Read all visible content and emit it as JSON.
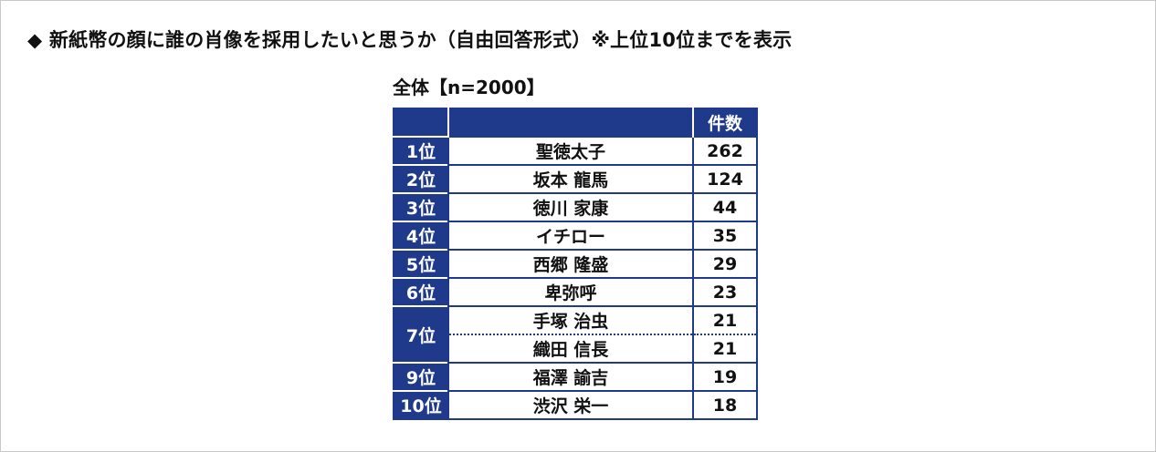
{
  "heading": "◆ 新紙幣の顔に誰の肖像を採用したいと思うか（自由回答形式）※上位10位までを表示",
  "chart_data": {
    "type": "table",
    "subtitle": "全体【n=2000】",
    "columns": [
      "",
      "",
      "件数"
    ],
    "rows": [
      {
        "rank": "1位",
        "name": "聖徳太子",
        "count": "262"
      },
      {
        "rank": "2位",
        "name": "坂本 龍馬",
        "count": "124"
      },
      {
        "rank": "3位",
        "name": "徳川 家康",
        "count": "44"
      },
      {
        "rank": "4位",
        "name": "イチロー",
        "count": "35"
      },
      {
        "rank": "5位",
        "name": "西郷 隆盛",
        "count": "29"
      },
      {
        "rank": "6位",
        "name": "卑弥呼",
        "count": "23"
      },
      {
        "rank": "7位",
        "name": "手塚 治虫",
        "count": "21"
      },
      {
        "rank": "",
        "name": "織田 信長",
        "count": "21"
      },
      {
        "rank": "9位",
        "name": "福澤 諭吉",
        "count": "19"
      },
      {
        "rank": "10位",
        "name": "渋沢 栄一",
        "count": "18"
      }
    ]
  },
  "colors": {
    "header_bg": "#1f3a8a",
    "header_text": "#ffffff",
    "border": "#1f3a8a"
  }
}
